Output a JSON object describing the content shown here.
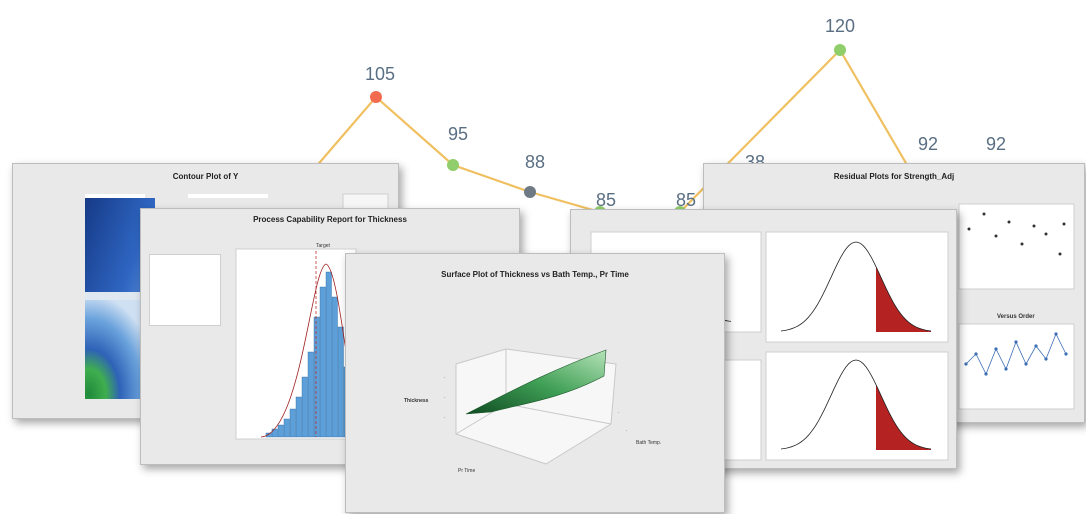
{
  "colors": {
    "trend_line": "#f0c060",
    "point_red": "#f26b4f",
    "point_green": "#8fce6a",
    "point_gray": "#6f7a85",
    "panel_bg": "#e9e9e9",
    "histogram": "#5d9fd8",
    "surface": "#3f9f55",
    "tail_red": "#b52222",
    "contour_dark": "#1a3e8c",
    "contour_green": "#2f9a45"
  },
  "chart_data": [
    {
      "type": "line",
      "values": [
        105,
        95,
        88,
        85,
        85,
        120,
        92,
        92
      ],
      "visible_labels": [
        "105",
        "95",
        "88",
        "85",
        "85",
        "120",
        "92",
        "92"
      ],
      "partial_label": "38"
    },
    {
      "type": "heatmap",
      "title": "Contour Plot of Y"
    },
    {
      "type": "bar",
      "title": "Process Capability Report for Thickness",
      "series_label": "Target"
    },
    {
      "type": "area",
      "title": "Surface Plot of Thickness vs Bath Temp., Pr Time",
      "zlabel": "Thickness",
      "ylabel": "Bath Temp.",
      "xlabel": "Pr Time"
    },
    {
      "type": "line",
      "title": "Residual Plots for Strength_Adj",
      "subplot_title": "Versus Order"
    }
  ],
  "panels": {
    "contour": {
      "title": "Contour Plot of Y"
    },
    "capability": {
      "title": "Process Capability Report for Thickness",
      "target_label": "Target"
    },
    "surface": {
      "title": "Surface Plot of Thickness vs Bath Temp., Pr Time",
      "zlabel": "Thickness",
      "ylabel": "Bath Temp.",
      "xlabel": "Pr Time"
    },
    "residual": {
      "title": "Residual Plots for Strength_Adj",
      "versus_order": "Versus Order"
    }
  }
}
